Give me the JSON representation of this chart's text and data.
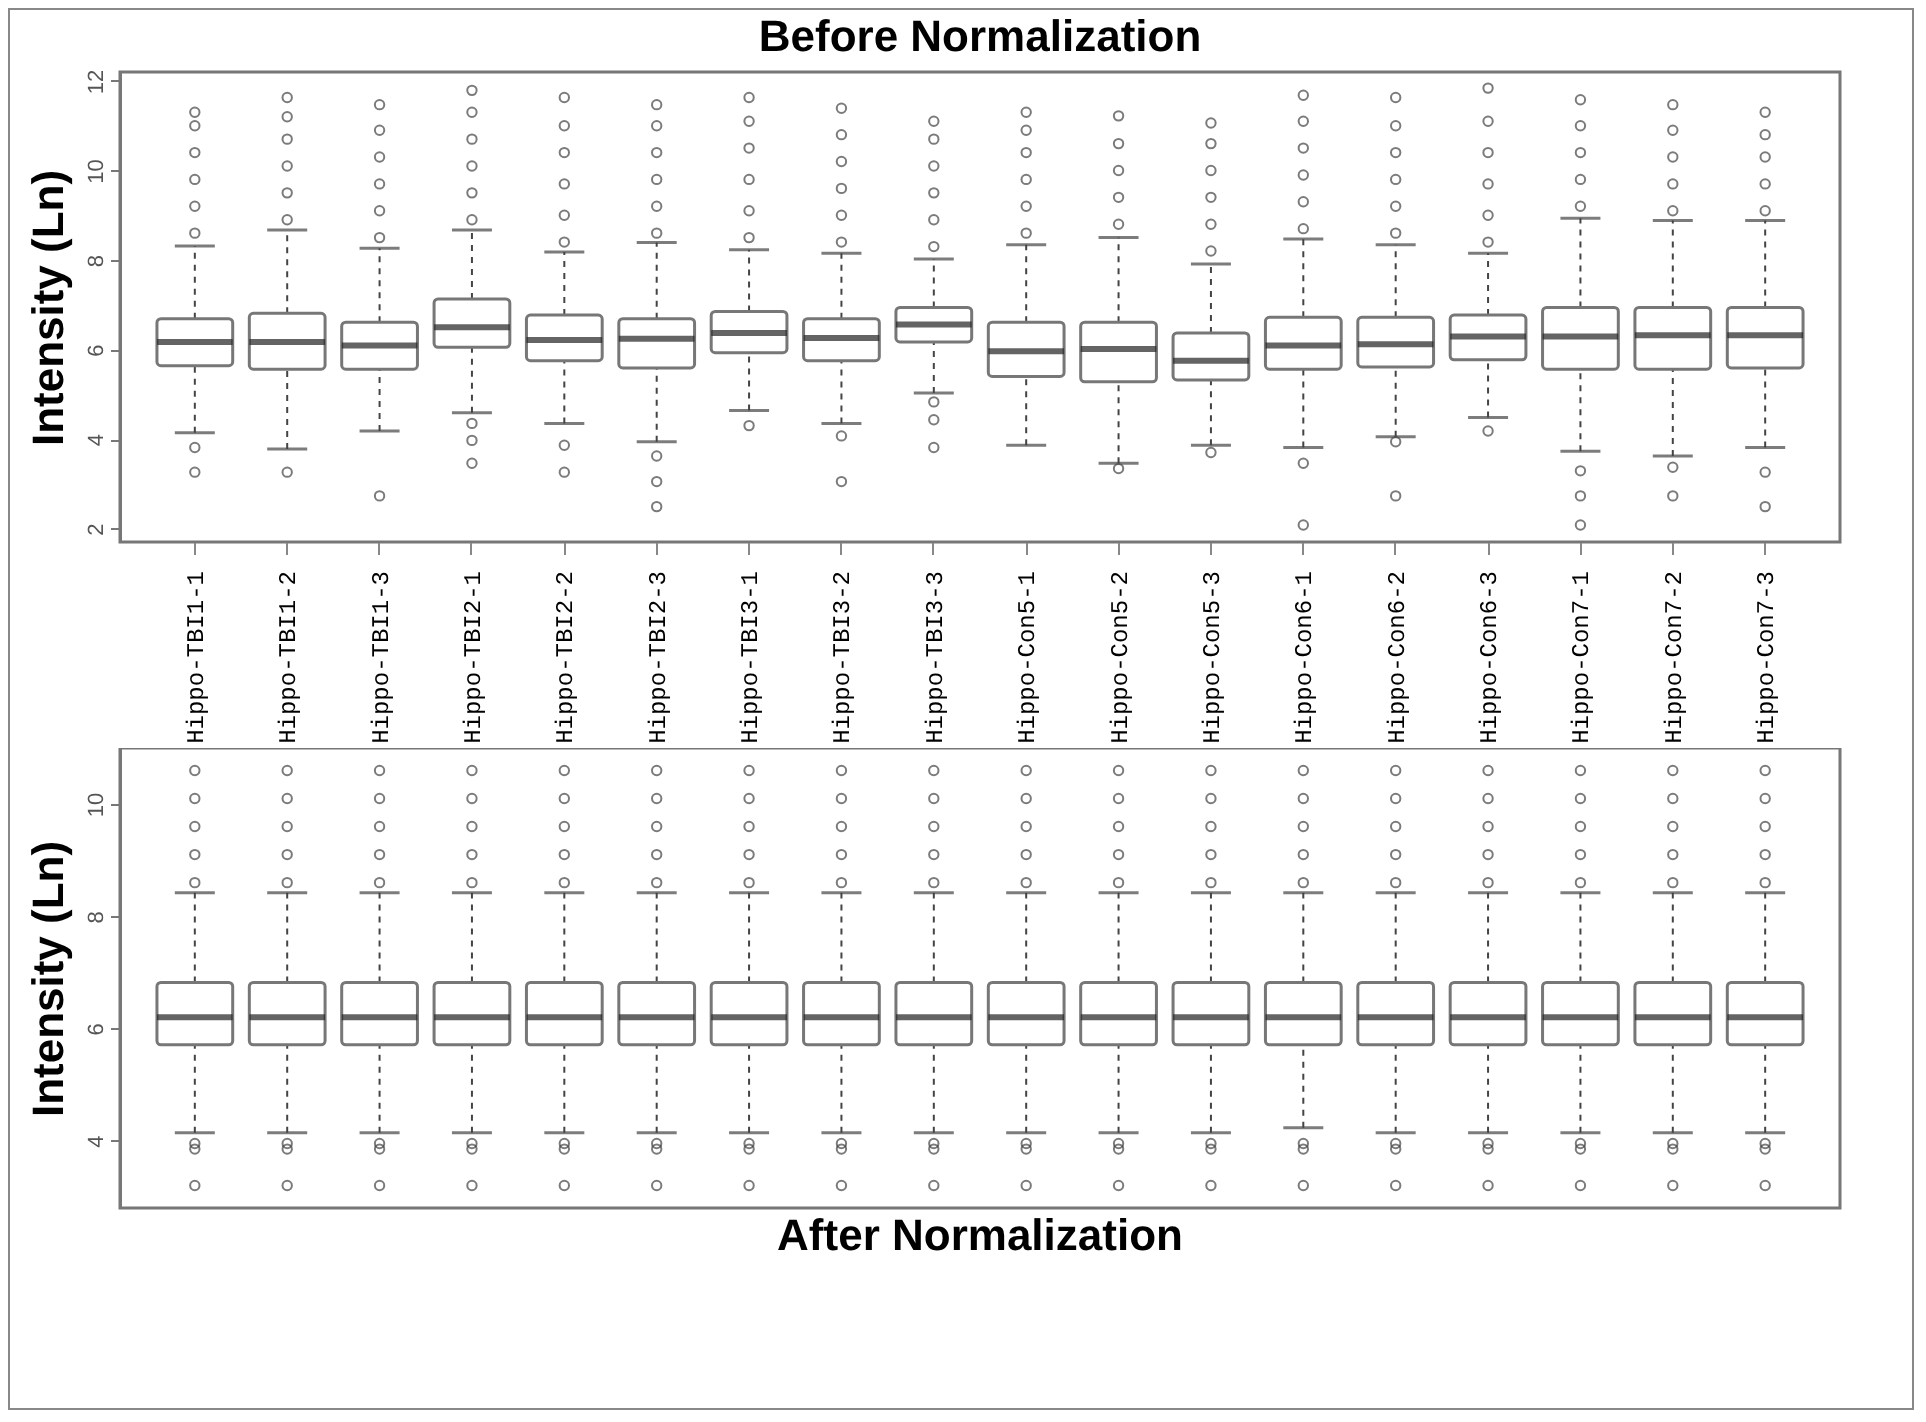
{
  "chart_data": [
    {
      "type": "box",
      "title": "Before Normalization",
      "ylabel": "Intensity (Ln)",
      "categories": [
        "Hippo-TBI1-1",
        "Hippo-TBI1-2",
        "Hippo-TBI1-3",
        "Hippo-TBI2-1",
        "Hippo-TBI2-2",
        "Hippo-TBI2-3",
        "Hippo-TBI3-1",
        "Hippo-TBI3-2",
        "Hippo-TBI3-3",
        "Hippo-Con5-1",
        "Hippo-Con5-2",
        "Hippo-Con5-3",
        "Hippo-Con6-1",
        "Hippo-Con6-2",
        "Hippo-Con6-3",
        "Hippo-Con7-1",
        "Hippo-Con7-2",
        "Hippo-Con7-3"
      ],
      "ylim": [
        1.7,
        12.2
      ],
      "yticks": [
        2,
        4,
        6,
        8,
        10,
        12
      ],
      "marker": "circle",
      "tick_labels": true,
      "boxes": [
        {
          "low": 4.14,
          "q1": 5.64,
          "median": 6.17,
          "q3": 6.69,
          "high": 8.31,
          "outliers": [
            8.6,
            9.2,
            9.8,
            10.4,
            11.0,
            11.3,
            3.81,
            3.26
          ]
        },
        {
          "low": 3.78,
          "q1": 5.56,
          "median": 6.17,
          "q3": 6.81,
          "high": 8.67,
          "outliers": [
            8.9,
            9.5,
            10.1,
            10.7,
            11.2,
            11.63,
            3.26
          ]
        },
        {
          "low": 4.18,
          "q1": 5.56,
          "median": 6.09,
          "q3": 6.61,
          "high": 8.26,
          "outliers": [
            8.5,
            9.1,
            9.7,
            10.3,
            10.9,
            11.47,
            2.73
          ]
        },
        {
          "low": 4.59,
          "q1": 6.05,
          "median": 6.5,
          "q3": 7.13,
          "high": 8.67,
          "outliers": [
            8.9,
            9.5,
            10.1,
            10.7,
            11.3,
            11.79,
            4.35,
            3.97,
            3.46
          ]
        },
        {
          "low": 4.35,
          "q1": 5.75,
          "median": 6.21,
          "q3": 6.77,
          "high": 8.18,
          "outliers": [
            8.4,
            9.0,
            9.7,
            10.4,
            11.0,
            11.63,
            3.86,
            3.26
          ]
        },
        {
          "low": 3.94,
          "q1": 5.59,
          "median": 6.24,
          "q3": 6.69,
          "high": 8.39,
          "outliers": [
            8.6,
            9.2,
            9.8,
            10.4,
            11.0,
            11.47,
            3.62,
            3.05,
            2.49
          ]
        },
        {
          "low": 4.64,
          "q1": 5.93,
          "median": 6.37,
          "q3": 6.85,
          "high": 8.23,
          "outliers": [
            8.5,
            9.1,
            9.8,
            10.5,
            11.1,
            11.63,
            4.3
          ]
        },
        {
          "low": 4.35,
          "q1": 5.75,
          "median": 6.26,
          "q3": 6.69,
          "high": 8.15,
          "outliers": [
            8.4,
            9.0,
            9.6,
            10.2,
            10.8,
            11.39,
            4.07,
            3.05
          ]
        },
        {
          "low": 5.03,
          "q1": 6.17,
          "median": 6.56,
          "q3": 6.94,
          "high": 8.02,
          "outliers": [
            8.3,
            8.9,
            9.5,
            10.1,
            10.7,
            11.1,
            4.83,
            4.43,
            3.81
          ]
        },
        {
          "low": 3.86,
          "q1": 5.4,
          "median": 5.96,
          "q3": 6.61,
          "high": 8.34,
          "outliers": [
            8.6,
            9.2,
            9.8,
            10.4,
            10.9,
            11.3
          ]
        },
        {
          "low": 3.46,
          "q1": 5.28,
          "median": 6.01,
          "q3": 6.61,
          "high": 8.5,
          "outliers": [
            8.8,
            9.4,
            10.0,
            10.6,
            11.22,
            3.34
          ]
        },
        {
          "low": 3.86,
          "q1": 5.32,
          "median": 5.75,
          "q3": 6.37,
          "high": 7.91,
          "outliers": [
            8.2,
            8.8,
            9.4,
            10.0,
            10.6,
            11.06,
            3.7
          ]
        },
        {
          "low": 3.81,
          "q1": 5.56,
          "median": 6.09,
          "q3": 6.72,
          "high": 8.47,
          "outliers": [
            8.7,
            9.3,
            9.9,
            10.5,
            11.1,
            11.68,
            3.46,
            2.08
          ]
        },
        {
          "low": 4.05,
          "q1": 5.61,
          "median": 6.12,
          "q3": 6.72,
          "high": 8.34,
          "outliers": [
            8.6,
            9.2,
            9.8,
            10.4,
            11.0,
            11.63,
            3.94,
            2.73
          ]
        },
        {
          "low": 4.48,
          "q1": 5.77,
          "median": 6.29,
          "q3": 6.77,
          "high": 8.15,
          "outliers": [
            8.4,
            9.0,
            9.7,
            10.4,
            11.1,
            11.84,
            4.18
          ]
        },
        {
          "low": 3.73,
          "q1": 5.56,
          "median": 6.29,
          "q3": 6.94,
          "high": 8.93,
          "outliers": [
            9.2,
            9.8,
            10.4,
            11.0,
            11.58,
            3.29,
            2.73,
            2.08
          ]
        },
        {
          "low": 3.62,
          "q1": 5.56,
          "median": 6.32,
          "q3": 6.94,
          "high": 8.88,
          "outliers": [
            9.1,
            9.7,
            10.3,
            10.9,
            11.47,
            3.37,
            2.73
          ]
        },
        {
          "low": 3.81,
          "q1": 5.59,
          "median": 6.32,
          "q3": 6.94,
          "high": 8.88,
          "outliers": [
            9.1,
            9.7,
            10.3,
            10.8,
            11.3,
            3.26,
            2.49
          ]
        }
      ]
    },
    {
      "type": "box",
      "title": "After Normalization",
      "ylabel": "Intensity (Ln)",
      "categories": [
        null,
        null,
        null,
        null,
        null,
        null,
        null,
        null,
        null,
        null,
        null,
        null,
        null,
        null,
        null,
        null,
        null,
        null
      ],
      "ylim": [
        2.8,
        11.0
      ],
      "yticks": [
        4,
        6,
        8,
        10
      ],
      "marker": "circle",
      "tick_labels": "y",
      "boxes": [
        {
          "low": 4.14,
          "q1": 5.71,
          "median": 6.2,
          "q3": 6.82,
          "high": 8.42,
          "outliers": [
            8.6,
            9.1,
            9.6,
            10.1,
            10.6,
            3.95,
            3.85,
            3.2
          ]
        },
        {
          "low": 4.14,
          "q1": 5.71,
          "median": 6.2,
          "q3": 6.82,
          "high": 8.42,
          "outliers": [
            8.6,
            9.1,
            9.6,
            10.1,
            10.6,
            3.95,
            3.85,
            3.2
          ]
        },
        {
          "low": 4.14,
          "q1": 5.71,
          "median": 6.2,
          "q3": 6.82,
          "high": 8.42,
          "outliers": [
            8.6,
            9.1,
            9.6,
            10.1,
            10.6,
            3.95,
            3.85,
            3.2
          ]
        },
        {
          "low": 4.14,
          "q1": 5.71,
          "median": 6.2,
          "q3": 6.82,
          "high": 8.42,
          "outliers": [
            8.6,
            9.1,
            9.6,
            10.1,
            10.6,
            3.95,
            3.85,
            3.2
          ]
        },
        {
          "low": 4.14,
          "q1": 5.71,
          "median": 6.2,
          "q3": 6.82,
          "high": 8.42,
          "outliers": [
            8.6,
            9.1,
            9.6,
            10.1,
            10.6,
            3.95,
            3.85,
            3.2
          ]
        },
        {
          "low": 4.14,
          "q1": 5.71,
          "median": 6.2,
          "q3": 6.82,
          "high": 8.42,
          "outliers": [
            8.6,
            9.1,
            9.6,
            10.1,
            10.6,
            3.95,
            3.85,
            3.2
          ]
        },
        {
          "low": 4.14,
          "q1": 5.71,
          "median": 6.2,
          "q3": 6.82,
          "high": 8.42,
          "outliers": [
            8.6,
            9.1,
            9.6,
            10.1,
            10.6,
            3.95,
            3.85,
            3.2
          ]
        },
        {
          "low": 4.14,
          "q1": 5.71,
          "median": 6.2,
          "q3": 6.82,
          "high": 8.42,
          "outliers": [
            8.6,
            9.1,
            9.6,
            10.1,
            10.6,
            3.95,
            3.85,
            3.2
          ]
        },
        {
          "low": 4.14,
          "q1": 5.71,
          "median": 6.2,
          "q3": 6.82,
          "high": 8.42,
          "outliers": [
            8.6,
            9.1,
            9.6,
            10.1,
            10.6,
            3.95,
            3.85,
            3.2
          ]
        },
        {
          "low": 4.14,
          "q1": 5.71,
          "median": 6.2,
          "q3": 6.82,
          "high": 8.42,
          "outliers": [
            8.6,
            9.1,
            9.6,
            10.1,
            10.6,
            3.95,
            3.85,
            3.2
          ]
        },
        {
          "low": 4.14,
          "q1": 5.71,
          "median": 6.2,
          "q3": 6.82,
          "high": 8.42,
          "outliers": [
            8.6,
            9.1,
            9.6,
            10.1,
            10.6,
            3.95,
            3.85,
            3.2
          ]
        },
        {
          "low": 4.14,
          "q1": 5.71,
          "median": 6.2,
          "q3": 6.82,
          "high": 8.42,
          "outliers": [
            8.6,
            9.1,
            9.6,
            10.1,
            10.6,
            3.95,
            3.85,
            3.2
          ]
        },
        {
          "low": 4.23,
          "q1": 5.71,
          "median": 6.2,
          "q3": 6.82,
          "high": 8.42,
          "outliers": [
            8.6,
            9.1,
            9.6,
            10.1,
            10.6,
            3.95,
            3.85,
            3.2
          ]
        },
        {
          "low": 4.14,
          "q1": 5.71,
          "median": 6.2,
          "q3": 6.82,
          "high": 8.42,
          "outliers": [
            8.6,
            9.1,
            9.6,
            10.1,
            10.6,
            3.95,
            3.85,
            3.2
          ]
        },
        {
          "low": 4.14,
          "q1": 5.71,
          "median": 6.2,
          "q3": 6.82,
          "high": 8.42,
          "outliers": [
            8.6,
            9.1,
            9.6,
            10.1,
            10.6,
            3.95,
            3.85,
            3.2
          ]
        },
        {
          "low": 4.14,
          "q1": 5.71,
          "median": 6.2,
          "q3": 6.82,
          "high": 8.42,
          "outliers": [
            8.6,
            9.1,
            9.6,
            10.1,
            10.6,
            3.95,
            3.85,
            3.2
          ]
        },
        {
          "low": 4.14,
          "q1": 5.71,
          "median": 6.2,
          "q3": 6.82,
          "high": 8.42,
          "outliers": [
            8.6,
            9.1,
            9.6,
            10.1,
            10.6,
            3.95,
            3.85,
            3.2
          ]
        },
        {
          "low": 4.14,
          "q1": 5.71,
          "median": 6.2,
          "q3": 6.82,
          "high": 8.42,
          "outliers": [
            8.6,
            9.1,
            9.6,
            10.1,
            10.6,
            3.95,
            3.85,
            3.2
          ]
        }
      ]
    }
  ]
}
